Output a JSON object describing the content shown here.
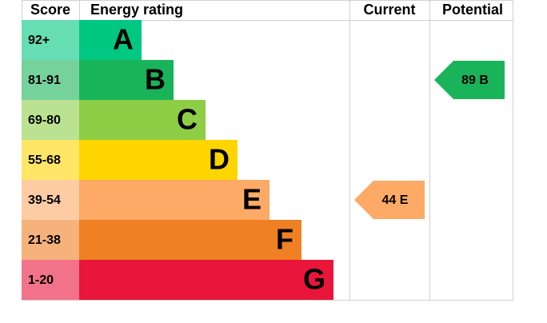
{
  "header": {
    "score": "Score",
    "energy_rating": "Energy rating",
    "current": "Current",
    "potential": "Potential"
  },
  "bands": [
    {
      "score": "92+",
      "rating": "A",
      "color": "#00c781",
      "score_color": "#66ddb3"
    },
    {
      "score": "81-91",
      "rating": "B",
      "color": "#19b459",
      "score_color": "#75d29b"
    },
    {
      "score": "69-80",
      "rating": "C",
      "color": "#8dce46",
      "score_color": "#bbe290"
    },
    {
      "score": "55-68",
      "rating": "D",
      "color": "#ffd500",
      "score_color": "#ffe666"
    },
    {
      "score": "39-54",
      "rating": "E",
      "color": "#fcaa65",
      "score_color": "#fdcca3"
    },
    {
      "score": "21-38",
      "rating": "F",
      "color": "#ef8023",
      "score_color": "#f5b27b"
    },
    {
      "score": "1-20",
      "rating": "G",
      "color": "#e9153b",
      "score_color": "#f27389"
    }
  ],
  "current": {
    "value": 44,
    "rating": "E"
  },
  "potential": {
    "value": 89,
    "rating": "B"
  }
}
